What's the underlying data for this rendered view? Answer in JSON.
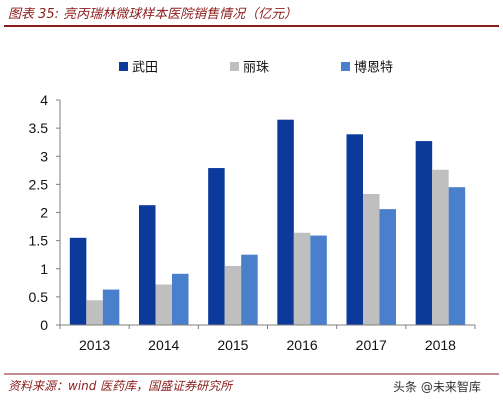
{
  "chart_data": {
    "type": "bar",
    "title": "图表 35: 亮丙瑞林微球样本医院销售情况（亿元）",
    "categories": [
      "2013",
      "2014",
      "2015",
      "2016",
      "2017",
      "2018"
    ],
    "series": [
      {
        "name": "武田",
        "color": "#0B3A9B",
        "values": [
          1.55,
          2.13,
          2.79,
          3.65,
          3.39,
          3.27
        ]
      },
      {
        "name": "丽珠",
        "color": "#BFBFBF",
        "values": [
          0.44,
          0.72,
          1.05,
          1.64,
          2.33,
          2.76
        ]
      },
      {
        "name": "博恩特",
        "color": "#4A7FCB",
        "values": [
          0.63,
          0.91,
          1.25,
          1.59,
          2.06,
          2.45
        ]
      }
    ],
    "yticks": [
      "0",
      "0.5",
      "1",
      "1.5",
      "2",
      "2.5",
      "3",
      "3.5",
      "4"
    ],
    "ylim": [
      0,
      4
    ],
    "xlabel": "",
    "ylabel": "",
    "grid": false,
    "legend": "top"
  },
  "source": "资料来源：wind 医药库，国盛证券研究所",
  "watermark": "头条 @未来智库",
  "theme": {
    "accent": "#8B1C1C"
  }
}
